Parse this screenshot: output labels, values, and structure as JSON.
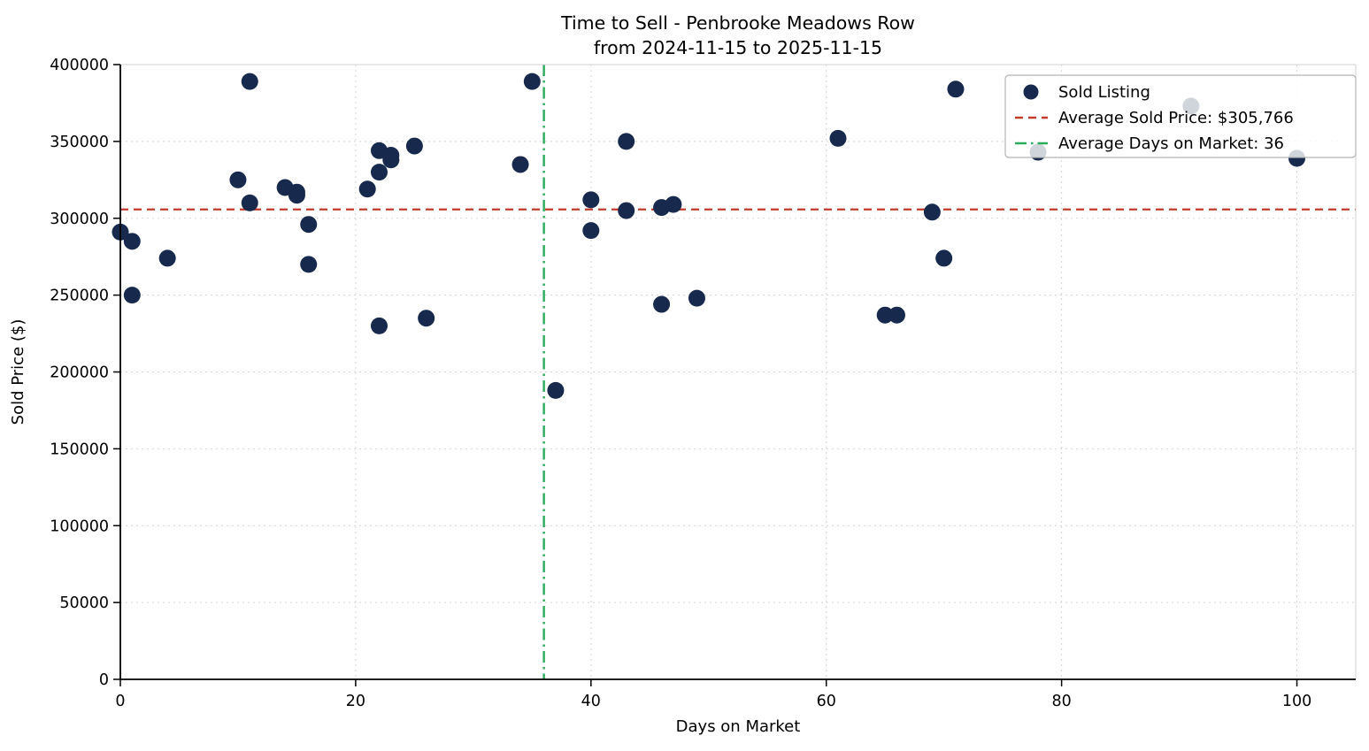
{
  "chart_data": {
    "type": "scatter",
    "title": "Time to Sell - Penbrooke Meadows Row",
    "subtitle": "from 2024-11-15 to 2025-11-15",
    "xlabel": "Days on Market",
    "ylabel": "Sold Price ($)",
    "xlim": [
      0,
      105
    ],
    "ylim": [
      0,
      400000
    ],
    "xticks": [
      0,
      20,
      40,
      60,
      80,
      100
    ],
    "yticks": [
      0,
      50000,
      100000,
      150000,
      200000,
      250000,
      300000,
      350000,
      400000
    ],
    "grid": true,
    "legend_position": "upper right",
    "legend": [
      {
        "type": "marker",
        "label": "Sold Listing"
      },
      {
        "type": "dashed-line",
        "label": "Average Sold Price: $305,766"
      },
      {
        "type": "dashdot-line",
        "label": "Average Days on Market: 36"
      }
    ],
    "avg_sold_price": 305766,
    "avg_days_on_market": 36,
    "colors": {
      "point": "#17294d",
      "avg_price_line": "#c23b2b",
      "avg_days_line": "#2bab5c",
      "grid": "#d4d4d4",
      "spine_dark": "#000000",
      "spine_light": "#d0d0d0",
      "legend_border": "#b3b3b3"
    },
    "points": [
      [
        0,
        291000
      ],
      [
        1,
        285000
      ],
      [
        1,
        250000
      ],
      [
        4,
        274000
      ],
      [
        10,
        325000
      ],
      [
        11,
        389000
      ],
      [
        11,
        310000
      ],
      [
        14,
        320000
      ],
      [
        15,
        317000
      ],
      [
        15,
        315000
      ],
      [
        16,
        296000
      ],
      [
        16,
        270000
      ],
      [
        21,
        319000
      ],
      [
        22,
        344000
      ],
      [
        22,
        330000
      ],
      [
        22,
        230000
      ],
      [
        23,
        341000
      ],
      [
        23,
        338000
      ],
      [
        25,
        347000
      ],
      [
        26,
        235000
      ],
      [
        34,
        335000
      ],
      [
        35,
        389000
      ],
      [
        37,
        188000
      ],
      [
        40,
        312000
      ],
      [
        40,
        292000
      ],
      [
        43,
        350000
      ],
      [
        43,
        305000
      ],
      [
        46,
        244000
      ],
      [
        46,
        307000
      ],
      [
        47,
        309000
      ],
      [
        49,
        248000
      ],
      [
        61,
        352000
      ],
      [
        65,
        237000
      ],
      [
        66,
        237000
      ],
      [
        69,
        304000
      ],
      [
        70,
        274000
      ],
      [
        71,
        384000
      ],
      [
        78,
        343000
      ],
      [
        91,
        373000
      ],
      [
        100,
        339000
      ]
    ]
  }
}
